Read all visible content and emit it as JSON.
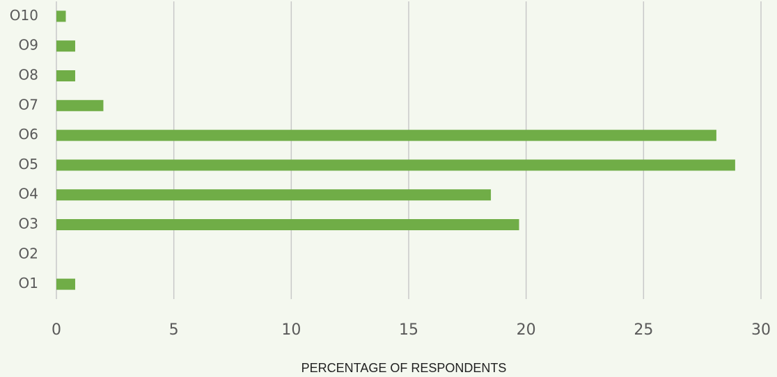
{
  "chart_data": {
    "type": "bar",
    "orientation": "horizontal",
    "x_label": "PERCENTAGE OF RESPONDENTS",
    "categories": [
      "O1",
      "O2",
      "O3",
      "O4",
      "O5",
      "O6",
      "O7",
      "O8",
      "O9",
      "O10"
    ],
    "values": [
      0.8,
      0,
      19.7,
      18.5,
      28.9,
      28.1,
      2.0,
      0.8,
      0.8,
      0.4
    ],
    "color": "#70ad47",
    "xlim": [
      0,
      30
    ],
    "xticks": [
      0,
      5,
      10,
      15,
      20,
      25,
      30
    ],
    "grid": true
  }
}
